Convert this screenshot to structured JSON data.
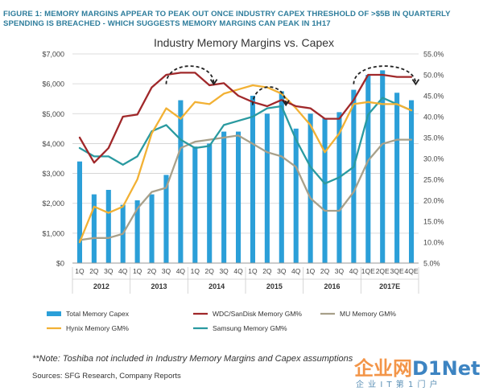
{
  "figure": {
    "title": "FIGURE 1: MEMORY MARGINS APPEAR TO PEAK OUT ONCE INDUSTRY CAPEX THRESHOLD OF >$5B IN QUARTERLY SPENDING IS BREACHED - WHICH SUGGESTS MEMORY MARGINS CAN PEAK IN 1H17",
    "footnote": "**Note: Toshiba not included in Industry Memory Margins and Capex assumptions",
    "sources": "Sources: SFG Research, Company Reports"
  },
  "watermark": {
    "main_left": "企业网",
    "main_right": "D1Net",
    "sub": "企 业 I T 第 1 门 户"
  },
  "colors": {
    "capex": "#2b9fd8",
    "wdc": "#a0282a",
    "mu": "#a8a08a",
    "hynix": "#f2b134",
    "samsung": "#2a9aa0",
    "dashed": "#222222",
    "grid": "#d0d0d0",
    "title": "#2e7d9c"
  },
  "chart_data": {
    "type": "bar",
    "title": "Industry Memory Margins vs. Capex",
    "categories": [
      "1Q",
      "2Q",
      "3Q",
      "4Q",
      "1Q",
      "2Q",
      "3Q",
      "4Q",
      "1Q",
      "2Q",
      "3Q",
      "4Q",
      "1Q",
      "2Q",
      "3Q",
      "4Q",
      "1Q",
      "2Q",
      "3Q",
      "4Q",
      "1QE",
      "2QE",
      "3QE",
      "4QE"
    ],
    "years": [
      {
        "label": "2012",
        "start": 0,
        "end": 3
      },
      {
        "label": "2013",
        "start": 4,
        "end": 7
      },
      {
        "label": "2014",
        "start": 8,
        "end": 11
      },
      {
        "label": "2015",
        "start": 12,
        "end": 15
      },
      {
        "label": "2016",
        "start": 16,
        "end": 19
      },
      {
        "label": "2017E",
        "start": 20,
        "end": 23
      }
    ],
    "left_axis": {
      "min": 0,
      "max": 7000,
      "ticks": [
        "$0",
        "$1,000",
        "$2,000",
        "$3,000",
        "$4,000",
        "$5,000",
        "$6,000",
        "$7,000"
      ]
    },
    "right_axis": {
      "min": 5,
      "max": 55,
      "ticks": [
        "5.0%",
        "10.0%",
        "15.0%",
        "20.0%",
        "25.0%",
        "30.0%",
        "35.0%",
        "40.0%",
        "45.0%",
        "50.0%",
        "55.0%"
      ]
    },
    "bars": {
      "name": "Total Memory Capex",
      "values": [
        3400,
        2300,
        2450,
        1950,
        2100,
        2300,
        2950,
        5450,
        3900,
        4000,
        4400,
        4400,
        5600,
        5000,
        5750,
        4500,
        5000,
        4850,
        5050,
        5800,
        6300,
        6450,
        5700,
        5450
      ]
    },
    "series": [
      {
        "name": "WDC/SanDisk Memory GM%",
        "key": "wdc",
        "values": [
          35.0,
          29.0,
          32.5,
          40.0,
          40.5,
          47.0,
          50.0,
          50.5,
          50.5,
          47.5,
          48.0,
          45.0,
          43.5,
          42.5,
          44.0,
          42.5,
          42.0,
          39.5,
          39.5,
          44.0,
          50.0,
          50.0,
          49.5,
          49.5
        ]
      },
      {
        "name": "MU Memory GM%",
        "key": "mu",
        "values": [
          10.5,
          11.0,
          11.0,
          12.0,
          18.0,
          22.0,
          23.0,
          32.5,
          34.0,
          34.5,
          35.0,
          35.5,
          33.5,
          31.5,
          30.5,
          28.0,
          20.5,
          17.5,
          17.5,
          22.0,
          29.5,
          33.5,
          34.5,
          34.5
        ]
      },
      {
        "name": "Hynix Memory GM%",
        "key": "hynix",
        "values": [
          10.0,
          18.5,
          17.0,
          18.5,
          25.0,
          36.0,
          42.0,
          39.5,
          43.5,
          43.0,
          45.5,
          46.5,
          47.5,
          47.0,
          45.5,
          42.0,
          38.0,
          31.5,
          36.0,
          43.0,
          43.5,
          43.0,
          43.0,
          41.5
        ]
      },
      {
        "name": "Samsung Memory GM%",
        "key": "samsung",
        "values": [
          32.5,
          30.5,
          30.5,
          28.5,
          30.5,
          36.5,
          38.0,
          34.5,
          32.5,
          33.0,
          38.0,
          39.0,
          40.0,
          42.0,
          42.5,
          34.5,
          28.0,
          24.0,
          25.5,
          28.0,
          40.5,
          44.5,
          43.0,
          41.5
        ]
      }
    ],
    "legend": {
      "placement": "bottom",
      "items": [
        {
          "label": "Total Memory Capex",
          "key": "capex",
          "kind": "bar"
        },
        {
          "label": "WDC/SanDisk Memory GM%",
          "key": "wdc",
          "kind": "line"
        },
        {
          "label": "MU Memory GM%",
          "key": "mu",
          "kind": "line"
        },
        {
          "label": "Hynix Memory GM%",
          "key": "hynix",
          "kind": "line"
        },
        {
          "label": "Samsung Memory GM%",
          "key": "samsung",
          "kind": "line"
        }
      ]
    },
    "annotations": [
      {
        "kind": "dashed-arc",
        "from": 6,
        "to": 10,
        "center": 8,
        "yPct": 52.0
      },
      {
        "kind": "dashed-arc",
        "from": 12,
        "to": 15,
        "center": 13.5,
        "yPct": 47.0
      },
      {
        "kind": "dashed-arc",
        "from": 19,
        "to": 24,
        "center": 21.5,
        "yPct": 52.0
      }
    ]
  }
}
